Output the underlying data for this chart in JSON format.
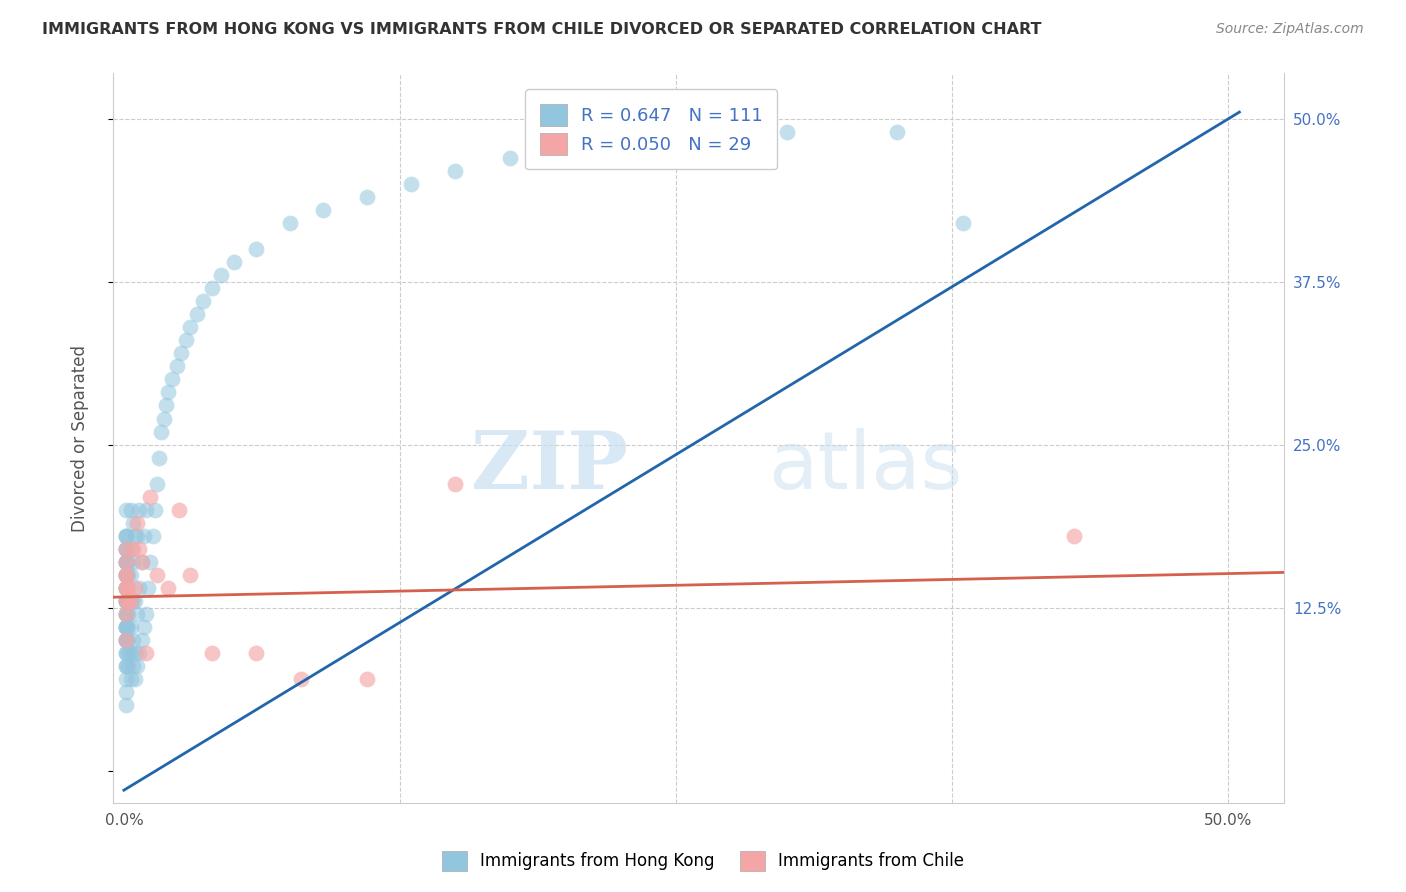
{
  "title": "IMMIGRANTS FROM HONG KONG VS IMMIGRANTS FROM CHILE DIVORCED OR SEPARATED CORRELATION CHART",
  "source": "Source: ZipAtlas.com",
  "ylabel": "Divorced or Separated",
  "hk_color": "#92c5de",
  "chile_color": "#f4a6a6",
  "hk_line_color": "#2166ac",
  "chile_line_color": "#d6604d",
  "hk_R": 0.647,
  "hk_N": 111,
  "chile_R": 0.05,
  "chile_N": 29,
  "watermark_zip": "ZIP",
  "watermark_atlas": "atlas",
  "legend_label_hk": "Immigrants from Hong Kong",
  "legend_label_chile": "Immigrants from Chile",
  "xlim": [
    -0.005,
    0.525
  ],
  "ylim": [
    -0.025,
    0.535
  ],
  "hk_line_x0": 0.0,
  "hk_line_y0": -0.015,
  "hk_line_x1": 0.505,
  "hk_line_y1": 0.505,
  "chile_line_x0": -0.005,
  "chile_line_y0": 0.133,
  "chile_line_x1": 0.525,
  "chile_line_y1": 0.152,
  "hk_scatter": {
    "x": [
      0.001,
      0.001,
      0.001,
      0.001,
      0.001,
      0.001,
      0.001,
      0.001,
      0.001,
      0.001,
      0.001,
      0.001,
      0.001,
      0.001,
      0.001,
      0.001,
      0.001,
      0.001,
      0.001,
      0.001,
      0.001,
      0.001,
      0.001,
      0.001,
      0.001,
      0.001,
      0.001,
      0.001,
      0.001,
      0.001,
      0.001,
      0.001,
      0.001,
      0.001,
      0.001,
      0.001,
      0.001,
      0.001,
      0.001,
      0.001,
      0.001,
      0.001,
      0.002,
      0.002,
      0.002,
      0.002,
      0.002,
      0.002,
      0.002,
      0.002,
      0.003,
      0.003,
      0.003,
      0.003,
      0.003,
      0.003,
      0.003,
      0.004,
      0.004,
      0.004,
      0.004,
      0.004,
      0.005,
      0.005,
      0.005,
      0.005,
      0.006,
      0.006,
      0.006,
      0.007,
      0.007,
      0.007,
      0.008,
      0.008,
      0.009,
      0.009,
      0.01,
      0.01,
      0.011,
      0.012,
      0.013,
      0.014,
      0.015,
      0.016,
      0.017,
      0.018,
      0.019,
      0.02,
      0.022,
      0.024,
      0.026,
      0.028,
      0.03,
      0.033,
      0.036,
      0.04,
      0.044,
      0.05,
      0.06,
      0.075,
      0.09,
      0.11,
      0.13,
      0.15,
      0.175,
      0.2,
      0.225,
      0.25,
      0.3,
      0.35,
      0.38
    ],
    "y": [
      0.05,
      0.06,
      0.07,
      0.08,
      0.08,
      0.09,
      0.09,
      0.1,
      0.1,
      0.1,
      0.1,
      0.11,
      0.11,
      0.11,
      0.11,
      0.12,
      0.12,
      0.12,
      0.13,
      0.13,
      0.13,
      0.13,
      0.14,
      0.14,
      0.14,
      0.14,
      0.15,
      0.15,
      0.15,
      0.15,
      0.15,
      0.16,
      0.16,
      0.16,
      0.16,
      0.17,
      0.17,
      0.17,
      0.18,
      0.18,
      0.18,
      0.2,
      0.08,
      0.09,
      0.1,
      0.11,
      0.12,
      0.13,
      0.15,
      0.16,
      0.07,
      0.09,
      0.11,
      0.13,
      0.15,
      0.17,
      0.2,
      0.08,
      0.1,
      0.13,
      0.16,
      0.19,
      0.07,
      0.09,
      0.13,
      0.18,
      0.08,
      0.12,
      0.18,
      0.09,
      0.14,
      0.2,
      0.1,
      0.16,
      0.11,
      0.18,
      0.12,
      0.2,
      0.14,
      0.16,
      0.18,
      0.2,
      0.22,
      0.24,
      0.26,
      0.27,
      0.28,
      0.29,
      0.3,
      0.31,
      0.32,
      0.33,
      0.34,
      0.35,
      0.36,
      0.37,
      0.38,
      0.39,
      0.4,
      0.42,
      0.43,
      0.44,
      0.45,
      0.46,
      0.47,
      0.47,
      0.48,
      0.48,
      0.49,
      0.49,
      0.42
    ]
  },
  "chile_scatter": {
    "x": [
      0.001,
      0.001,
      0.001,
      0.001,
      0.001,
      0.001,
      0.001,
      0.001,
      0.001,
      0.002,
      0.002,
      0.003,
      0.004,
      0.005,
      0.006,
      0.007,
      0.008,
      0.01,
      0.012,
      0.015,
      0.02,
      0.025,
      0.03,
      0.04,
      0.06,
      0.08,
      0.11,
      0.15,
      0.43
    ],
    "y": [
      0.1,
      0.12,
      0.13,
      0.14,
      0.14,
      0.15,
      0.15,
      0.16,
      0.17,
      0.13,
      0.14,
      0.13,
      0.17,
      0.14,
      0.19,
      0.17,
      0.16,
      0.09,
      0.21,
      0.15,
      0.14,
      0.2,
      0.15,
      0.09,
      0.09,
      0.07,
      0.07,
      0.22,
      0.18
    ]
  }
}
